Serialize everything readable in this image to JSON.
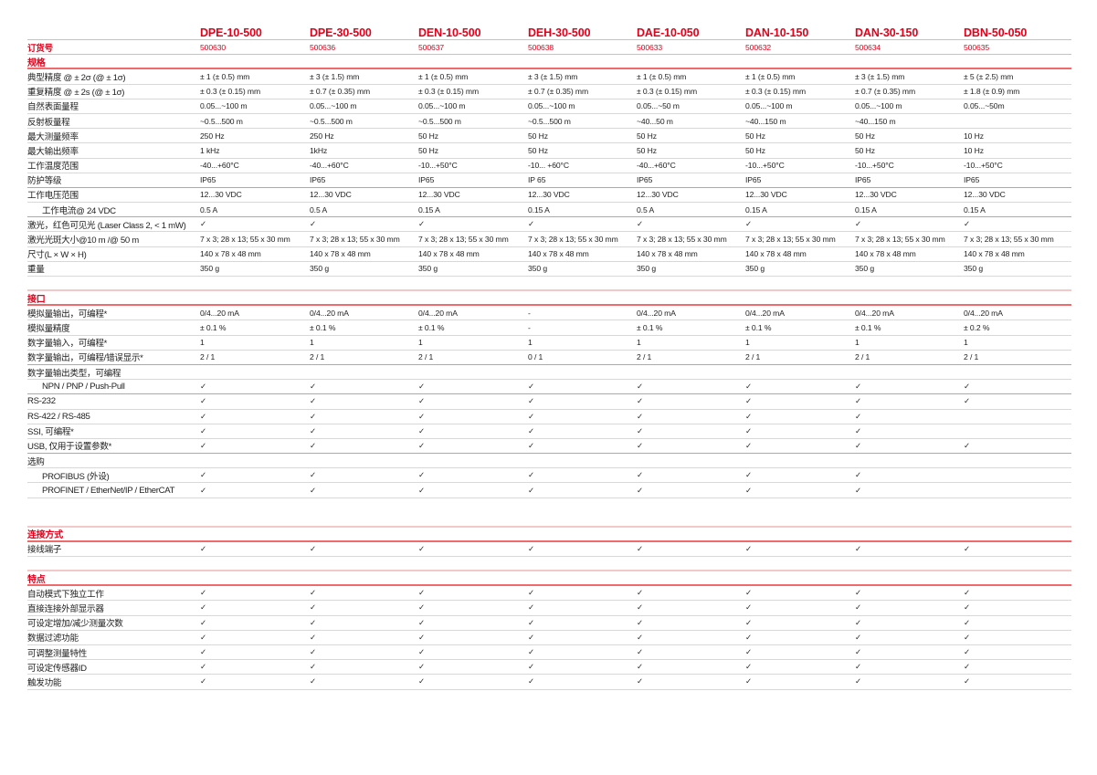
{
  "models": [
    "DPE-10-500",
    "DPE-30-500",
    "DEN-10-500",
    "DEH-30-500",
    "DAE-10-050",
    "DAN-10-150",
    "DAN-30-150",
    "DBN-50-050"
  ],
  "order_label": "订货号",
  "order_numbers": [
    "500630",
    "500636",
    "500637",
    "500638",
    "500633",
    "500632",
    "500634",
    "500635"
  ],
  "sections": [
    {
      "title": "规格",
      "rows": [
        {
          "label": "典型精度 @ ± 2σ (@ ± 1σ)",
          "values": [
            "± 1 (± 0.5) mm",
            "± 3 (± 1.5) mm",
            "± 1 (± 0.5) mm",
            "± 3 (± 1.5) mm",
            "± 1 (± 0.5) mm",
            "± 1 (± 0.5) mm",
            "± 3 (± 1.5) mm",
            "± 5 (± 2.5) mm"
          ]
        },
        {
          "label": "重复精度 @ ± 2s (@ ± 1σ)",
          "values": [
            "± 0.3 (± 0.15) mm",
            "± 0.7 (± 0.35) mm",
            "± 0.3 (± 0.15) mm",
            "± 0.7 (± 0.35) mm",
            "± 0.3 (± 0.15) mm",
            "± 0.3 (± 0.15) mm",
            "± 0.7 (± 0.35) mm",
            "± 1.8 (± 0.9) mm"
          ]
        },
        {
          "label": "自然表面量程",
          "values": [
            "0.05...~100 m",
            "0.05...~100 m",
            "0.05...~100 m",
            "0.05...~100 m",
            "0.05...~50 m",
            "0.05...~100 m",
            "0.05...~100 m",
            "0.05...~50m"
          ]
        },
        {
          "label": "反射板量程",
          "values": [
            " ~0.5...500 m",
            " ~0.5...500 m",
            " ~0.5...500 m",
            " ~0.5...500 m",
            "~40...50 m",
            "~40...150 m",
            "~40...150 m",
            ""
          ]
        },
        {
          "label": "最大测量频率",
          "values": [
            "250 Hz",
            "250 Hz",
            "50 Hz",
            "50 Hz",
            "50 Hz",
            "50 Hz",
            "50 Hz",
            "10 Hz"
          ]
        },
        {
          "label": "最大输出频率",
          "values": [
            "1 kHz",
            "1kHz",
            "50 Hz",
            "50 Hz",
            "50 Hz",
            "50 Hz",
            "50 Hz",
            "10 Hz"
          ]
        },
        {
          "label": "工作温度范围",
          "values": [
            "-40...+60°C",
            "-40...+60°C",
            "-10...+50°C",
            "-10... +60°C",
            "-40...+60°C",
            "-10...+50°C",
            "-10...+50°C",
            "-10...+50°C"
          ]
        },
        {
          "label": "防护等级",
          "dark": true,
          "values": [
            "IP65",
            "IP65",
            "IP65",
            "IP 65",
            "IP65",
            "IP65",
            "IP65",
            "IP65"
          ]
        },
        {
          "label": "工作电压范围",
          "values": [
            "12...30 VDC",
            "12...30 VDC",
            "12...30 VDC",
            "12...30 VDC",
            "12...30 VDC",
            "12...30 VDC",
            "12...30 VDC",
            "12...30 VDC"
          ]
        },
        {
          "label": "工作电流@ 24 VDC",
          "indent": true,
          "dark": true,
          "values": [
            "0.5 A",
            "0.5 A",
            "0.15 A",
            "0.15 A",
            "0.5 A",
            "0.15 A",
            "0.15 A",
            "0.15 A"
          ]
        },
        {
          "label": "激光，红色可见光 (Laser Class 2, < 1 mW)",
          "values": [
            "✓",
            "✓",
            "✓",
            "✓",
            "✓",
            "✓",
            "✓",
            "✓"
          ]
        },
        {
          "label": "激光光斑大小@10 m /@ 50 m",
          "values": [
            "7 x 3; 28 x 13; 55 x 30 mm",
            "7 x 3; 28 x 13; 55 x 30 mm",
            "7 x 3; 28 x 13; 55 x 30 mm",
            "7 x 3; 28 x 13; 55 x 30 mm",
            "7 x 3; 28 x 13; 55 x 30 mm",
            "7 x 3; 28 x 13; 55 x 30 mm",
            "7 x 3; 28 x 13; 55 x 30 mm",
            "7 x 3; 28 x 13; 55 x 30 mm"
          ]
        },
        {
          "label": "尺寸(L × W × H)",
          "values": [
            "140 x 78 x 48 mm",
            "140 x 78 x 48 mm",
            "140 x 78 x 48 mm",
            "140 x 78 x 48 mm",
            "140 x 78 x 48 mm",
            "140 x 78 x 48 mm",
            "140 x 78 x 48 mm",
            "140 x 78 x 48 mm"
          ]
        },
        {
          "label": "重量",
          "values": [
            "350 g",
            "350 g",
            "350 g",
            "350 g",
            "350 g",
            "350 g",
            "350 g",
            "350 g"
          ]
        }
      ]
    },
    {
      "title": "接口",
      "rows": [
        {
          "label": "模拟量输出，可编程*",
          "values": [
            "0/4...20 mA",
            "0/4...20 mA",
            "0/4...20 mA",
            "-",
            "0/4...20 mA",
            "0/4...20 mA",
            "0/4...20 mA",
            "0/4...20 mA"
          ]
        },
        {
          "label": "模拟量精度",
          "values": [
            "± 0.1 %",
            "± 0.1 %",
            "± 0.1 %",
            "-",
            "± 0.1 %",
            "± 0.1 %",
            "± 0.1 %",
            "± 0.2 %"
          ]
        },
        {
          "label": "数字量输入，可编程*",
          "values": [
            "1",
            "1",
            "1",
            "1",
            "1",
            "1",
            "1",
            "1"
          ]
        },
        {
          "label": "数字量输出，可编程/错误显示*",
          "dark": true,
          "values": [
            "2 / 1",
            "2 / 1",
            "2 / 1",
            "0 / 1",
            "2 / 1",
            "2 / 1",
            "2 / 1",
            "2 / 1"
          ]
        },
        {
          "label": "数字量输出类型，可编程",
          "values": [
            "",
            "",
            "",
            "",
            "",
            "",
            "",
            ""
          ]
        },
        {
          "label": "NPN / PNP / Push-Pull",
          "indent": true,
          "dark": true,
          "values": [
            "✓",
            "✓",
            "✓",
            "✓",
            "✓",
            "✓",
            "✓",
            "✓"
          ]
        },
        {
          "label": "RS-232",
          "values": [
            "✓",
            "✓",
            "✓",
            "✓",
            "✓",
            "✓",
            "✓",
            "✓"
          ]
        },
        {
          "label": "RS-422 / RS-485",
          "values": [
            "✓",
            "✓",
            "✓",
            "✓",
            "✓",
            "✓",
            "✓",
            ""
          ]
        },
        {
          "label": "SSI, 可编程*",
          "values": [
            "✓",
            "✓",
            "✓",
            "✓",
            "✓",
            "✓",
            "✓",
            ""
          ]
        },
        {
          "label": "USB, 仅用于设置参数*",
          "dark": true,
          "values": [
            "✓",
            "✓",
            "✓",
            "✓",
            "✓",
            "✓",
            "✓",
            "✓"
          ]
        },
        {
          "label": "选购",
          "values": [
            "",
            "",
            "",
            "",
            "",
            "",
            "",
            ""
          ]
        },
        {
          "label": "PROFIBUS (外设)",
          "indent": true,
          "values": [
            "✓",
            "✓",
            "✓",
            "✓",
            "✓",
            "✓",
            "✓",
            ""
          ]
        },
        {
          "label": "PROFINET / EtherNet/IP / EtherCAT",
          "indent": true,
          "values": [
            "✓",
            "✓",
            "✓",
            "✓",
            "✓",
            "✓",
            "✓",
            ""
          ]
        }
      ]
    },
    {
      "title": "连接方式",
      "rows": [
        {
          "label": "接线端子",
          "values": [
            "✓",
            "✓",
            "✓",
            "✓",
            "✓",
            "✓",
            "✓",
            "✓"
          ]
        }
      ]
    },
    {
      "title": "特点",
      "rows": [
        {
          "label": "自动模式下独立工作",
          "values": [
            "✓",
            "✓",
            "✓",
            "✓",
            "✓",
            "✓",
            "✓",
            "✓"
          ]
        },
        {
          "label": "直接连接外部显示器",
          "values": [
            "✓",
            "✓",
            "✓",
            "✓",
            "✓",
            "✓",
            "✓",
            "✓"
          ]
        },
        {
          "label": "可设定增加/减少测量次数",
          "values": [
            "✓",
            "✓",
            "✓",
            "✓",
            "✓",
            "✓",
            "✓",
            "✓"
          ]
        },
        {
          "label": "数据过滤功能",
          "values": [
            "✓",
            "✓",
            "✓",
            "✓",
            "✓",
            "✓",
            "✓",
            "✓"
          ]
        },
        {
          "label": "可调整测量特性",
          "values": [
            "✓",
            "✓",
            "✓",
            "✓",
            "✓",
            "✓",
            "✓",
            "✓"
          ]
        },
        {
          "label": "可设定传感器ID",
          "values": [
            "✓",
            "✓",
            "✓",
            "✓",
            "✓",
            "✓",
            "✓",
            "✓"
          ]
        },
        {
          "label": "触发功能",
          "values": [
            "✓",
            "✓",
            "✓",
            "✓",
            "✓",
            "✓",
            "✓",
            "✓"
          ]
        }
      ]
    }
  ],
  "colors": {
    "accent": "#e2001a",
    "section_rule": "#ef6b6b",
    "row_rule": "#d8d8d8"
  }
}
